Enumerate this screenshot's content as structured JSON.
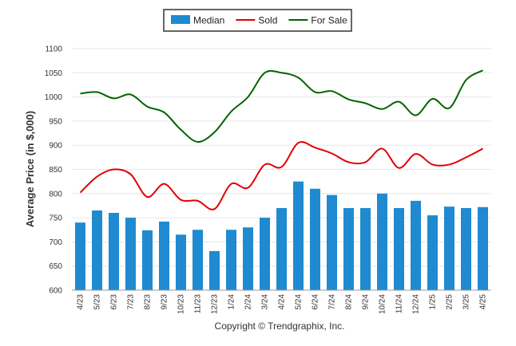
{
  "chart_data": {
    "type": "bar",
    "categories": [
      "4/23",
      "5/23",
      "6/23",
      "7/23",
      "8/23",
      "9/23",
      "10/23",
      "11/23",
      "12/23",
      "1/24",
      "2/24",
      "3/24",
      "4/24",
      "5/24",
      "6/24",
      "7/24",
      "8/24",
      "9/24",
      "10/24",
      "11/24",
      "12/24",
      "1/25",
      "2/25",
      "3/25",
      "4/25"
    ],
    "series": [
      {
        "name": "Median",
        "type": "bar",
        "color": "#1f8ad0",
        "values": [
          740,
          765,
          760,
          750,
          724,
          742,
          715,
          725,
          681,
          725,
          730,
          750,
          770,
          825,
          810,
          797,
          770,
          770,
          800,
          770,
          785,
          755,
          773,
          770,
          772
        ]
      },
      {
        "name": "Sold",
        "type": "line",
        "color": "#e10000",
        "values": [
          802,
          835,
          850,
          840,
          793,
          820,
          787,
          785,
          768,
          820,
          812,
          860,
          855,
          905,
          895,
          883,
          865,
          865,
          893,
          853,
          882,
          860,
          860,
          875,
          893
        ]
      },
      {
        "name": "For Sale",
        "type": "line",
        "color": "#006400",
        "values": [
          1007,
          1010,
          997,
          1005,
          980,
          968,
          932,
          907,
          927,
          970,
          1000,
          1050,
          1050,
          1040,
          1010,
          1012,
          995,
          987,
          975,
          990,
          962,
          996,
          977,
          1035,
          1055
        ]
      }
    ],
    "ylabel": "Average Price (in $,000)",
    "xlabel": "",
    "ylim": [
      600,
      1100
    ],
    "yticks": [
      600,
      650,
      700,
      750,
      800,
      850,
      900,
      950,
      1000,
      1050,
      1100
    ],
    "grid": true,
    "legend": "top-center"
  },
  "footer": {
    "copyright": "Copyright © Trendgraphix, Inc."
  }
}
